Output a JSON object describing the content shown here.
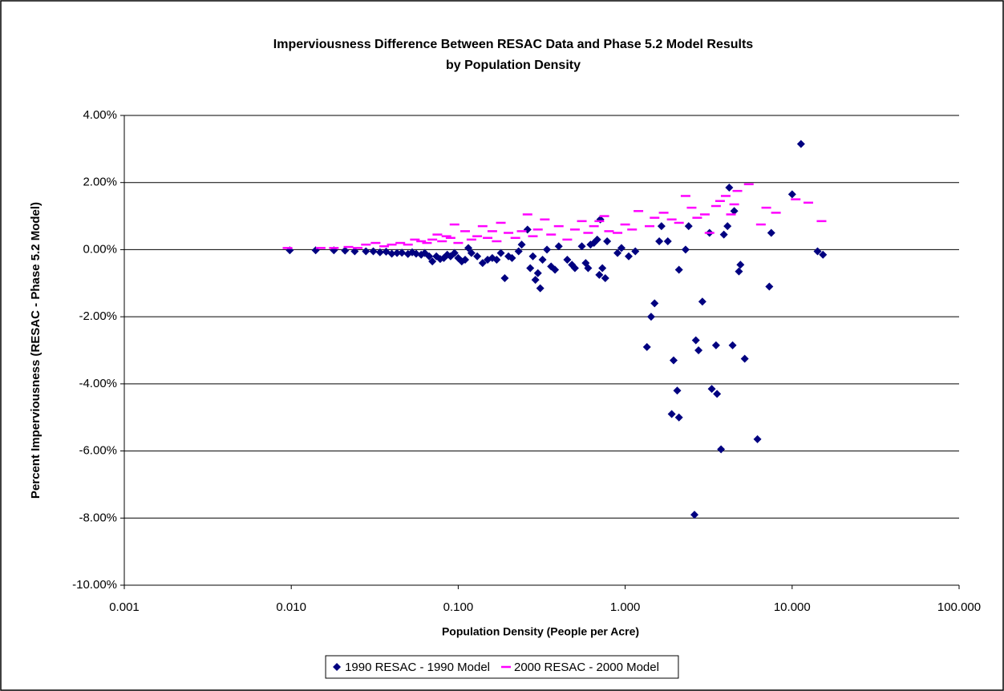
{
  "chart_data": {
    "type": "scatter",
    "title": [
      "Imperviousness Difference Between RESAC Data and Phase 5.2 Model Results",
      "by Population Density"
    ],
    "x_label": "Population Density (People per Acre)",
    "y_label": "Percent Imperviousness (RESAC - Phase 5.2 Model)",
    "xscale": "log",
    "xlim": [
      0.001,
      100
    ],
    "xticks": [
      {
        "value": 0.001,
        "label": "0.001"
      },
      {
        "value": 0.01,
        "label": "0.010"
      },
      {
        "value": 0.1,
        "label": "0.100"
      },
      {
        "value": 1,
        "label": "1.000"
      },
      {
        "value": 10,
        "label": "10.000"
      },
      {
        "value": 100,
        "label": "100.000"
      }
    ],
    "ylim": [
      -10,
      4
    ],
    "yticks": [
      {
        "value": -10,
        "label": "-10.00%"
      },
      {
        "value": -8,
        "label": "-8.00%"
      },
      {
        "value": -6,
        "label": "-6.00%"
      },
      {
        "value": -4,
        "label": "-4.00%"
      },
      {
        "value": -2,
        "label": "-2.00%"
      },
      {
        "value": 0,
        "label": "0.00%"
      },
      {
        "value": 2,
        "label": "2.00%"
      },
      {
        "value": 4,
        "label": "4.00%"
      }
    ],
    "grid": true,
    "legend": "bottom",
    "series": [
      {
        "name": "1990 RESAC - 1990 Model",
        "color": "#000080",
        "marker": "diamond",
        "x": [
          0.0098,
          0.014,
          0.018,
          0.021,
          0.024,
          0.028,
          0.031,
          0.034,
          0.037,
          0.04,
          0.043,
          0.046,
          0.05,
          0.053,
          0.056,
          0.06,
          0.063,
          0.067,
          0.07,
          0.074,
          0.078,
          0.082,
          0.086,
          0.09,
          0.095,
          0.1,
          0.105,
          0.11,
          0.115,
          0.12,
          0.13,
          0.14,
          0.15,
          0.16,
          0.17,
          0.18,
          0.19,
          0.2,
          0.21,
          0.23,
          0.24,
          0.26,
          0.27,
          0.28,
          0.29,
          0.3,
          0.31,
          0.32,
          0.34,
          0.36,
          0.38,
          0.4,
          0.45,
          0.48,
          0.5,
          0.55,
          0.58,
          0.6,
          0.62,
          0.65,
          0.68,
          0.7,
          0.71,
          0.73,
          0.76,
          0.78,
          0.9,
          0.95,
          1.05,
          1.15,
          1.35,
          1.43,
          1.5,
          1.6,
          1.65,
          1.8,
          1.9,
          1.95,
          2.05,
          2.1,
          2.1,
          2.3,
          2.4,
          2.6,
          2.65,
          2.75,
          2.9,
          3.2,
          3.3,
          3.5,
          3.55,
          3.75,
          3.9,
          4.1,
          4.2,
          4.4,
          4.5,
          4.8,
          4.9,
          5.2,
          6.2,
          7.3,
          7.5,
          10,
          11.3,
          14.2,
          15.3
        ],
        "values": [
          -0.02,
          -0.02,
          -0.02,
          -0.03,
          -0.05,
          -0.05,
          -0.05,
          -0.08,
          -0.06,
          -0.12,
          -0.1,
          -0.09,
          -0.13,
          -0.08,
          -0.12,
          -0.15,
          -0.1,
          -0.2,
          -0.35,
          -0.2,
          -0.28,
          -0.25,
          -0.15,
          -0.2,
          -0.1,
          -0.25,
          -0.35,
          -0.3,
          0.05,
          -0.1,
          -0.2,
          -0.4,
          -0.3,
          -0.25,
          -0.3,
          -0.1,
          -0.85,
          -0.2,
          -0.25,
          -0.05,
          0.15,
          0.6,
          -0.55,
          -0.2,
          -0.9,
          -0.7,
          -1.15,
          -0.3,
          0,
          -0.5,
          -0.6,
          0.1,
          -0.3,
          -0.45,
          -0.55,
          0.1,
          -0.4,
          -0.55,
          0.15,
          0.2,
          0.3,
          -0.75,
          0.9,
          -0.55,
          -0.85,
          0.25,
          -0.1,
          0.05,
          -0.2,
          -0.05,
          -2.9,
          -2,
          -1.6,
          0.25,
          0.7,
          0.25,
          -4.9,
          -3.3,
          -4.2,
          -5,
          -0.6,
          0,
          0.7,
          -7.9,
          -2.7,
          -3,
          -1.55,
          0.5,
          -4.15,
          -2.85,
          -4.3,
          -5.95,
          0.45,
          0.7,
          1.85,
          -2.85,
          1.15,
          -0.65,
          -0.45,
          -3.25,
          -5.65,
          -1.1,
          0.5,
          1.65,
          3.15,
          -0.05,
          -0.15
        ]
      },
      {
        "name": "2000 RESAC - 2000 Model",
        "color": "#ff00ff",
        "marker": "dash",
        "x": [
          0.0095,
          0.015,
          0.018,
          0.022,
          0.025,
          0.028,
          0.032,
          0.036,
          0.04,
          0.045,
          0.05,
          0.055,
          0.06,
          0.065,
          0.07,
          0.075,
          0.08,
          0.085,
          0.09,
          0.095,
          0.1,
          0.11,
          0.12,
          0.13,
          0.14,
          0.15,
          0.16,
          0.17,
          0.18,
          0.2,
          0.22,
          0.24,
          0.26,
          0.28,
          0.3,
          0.33,
          0.36,
          0.4,
          0.45,
          0.5,
          0.55,
          0.6,
          0.65,
          0.7,
          0.75,
          0.8,
          0.9,
          1,
          1.1,
          1.2,
          1.4,
          1.5,
          1.7,
          1.9,
          2.1,
          2.3,
          2.5,
          2.7,
          3,
          3.2,
          3.5,
          3.7,
          4,
          4.3,
          4.5,
          4.7,
          5.5,
          6.5,
          7,
          8,
          10.5,
          12.5,
          15
        ],
        "values": [
          0.05,
          0.05,
          0.05,
          0.08,
          0.05,
          0.15,
          0.2,
          0.1,
          0.15,
          0.2,
          0.15,
          0.3,
          0.25,
          0.2,
          0.3,
          0.45,
          0.25,
          0.4,
          0.35,
          0.75,
          0.2,
          0.55,
          0.3,
          0.4,
          0.7,
          0.35,
          0.55,
          0.25,
          0.8,
          0.5,
          0.35,
          0.55,
          1.05,
          0.4,
          0.6,
          0.9,
          0.45,
          0.7,
          0.3,
          0.6,
          0.85,
          0.5,
          0.7,
          0.85,
          1,
          0.55,
          0.5,
          0.75,
          0.6,
          1.15,
          0.7,
          0.95,
          1.1,
          0.9,
          0.8,
          1.6,
          1.25,
          0.95,
          1.05,
          0.5,
          1.3,
          1.45,
          1.6,
          1.05,
          1.35,
          1.75,
          1.95,
          0.75,
          1.25,
          1.1,
          1.5,
          1.4,
          0.85
        ]
      }
    ]
  }
}
